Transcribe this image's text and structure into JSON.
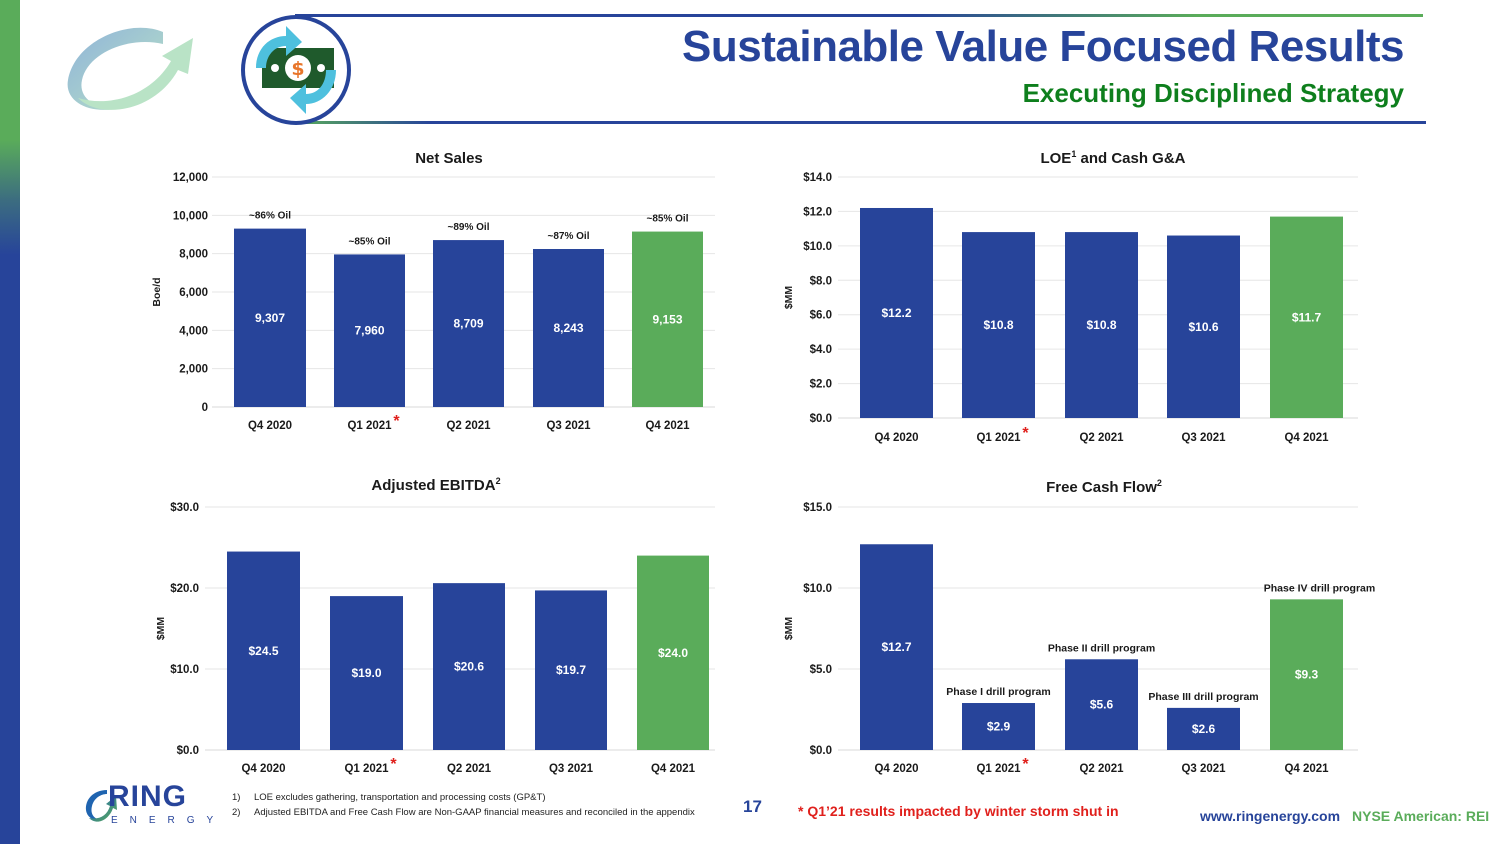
{
  "header": {
    "title": "Sustainable Value Focused Results",
    "subtitle": "Executing Disciplined Strategy",
    "icons": [
      "ring-swoosh-logo-icon",
      "money-cycle-icon"
    ]
  },
  "colors": {
    "primary_blue": "#27449a",
    "accent_green": "#5aac5a",
    "subtitle_green": "#0e7f1d",
    "asterisk_red": "#e0201c",
    "grid": "#e6e6e6"
  },
  "chart_data": [
    {
      "id": "net_sales",
      "type": "bar",
      "title": "Net Sales",
      "title_sup": "",
      "xlabel": "",
      "ylabel": "Boe/d",
      "ylim": [
        0,
        12000
      ],
      "yticks": [
        0,
        2000,
        4000,
        6000,
        8000,
        10000,
        12000
      ],
      "ytick_labels": [
        "0",
        "2,000",
        "4,000",
        "6,000",
        "8,000",
        "10,000",
        "12,000"
      ],
      "grid": true,
      "categories": [
        "Q4 2020",
        "Q1 2021",
        "Q2 2021",
        "Q3 2021",
        "Q4 2021"
      ],
      "values": [
        9307,
        7960,
        8709,
        8243,
        9153
      ],
      "value_labels": [
        "9,307",
        "7,960",
        "8,709",
        "8,243",
        "9,153"
      ],
      "annotations": [
        "~86% Oil",
        "~85% Oil",
        "~89% Oil",
        "~87% Oil",
        "~85% Oil"
      ],
      "highlight_index": 4,
      "asterisk_index": 1
    },
    {
      "id": "loe_cash_ga",
      "type": "bar",
      "title": "LOE",
      "title_sup": "1",
      "title_rest": " and Cash G&A",
      "xlabel": "",
      "ylabel": "$MM",
      "ylim": [
        0,
        14
      ],
      "yticks": [
        0,
        2,
        4,
        6,
        8,
        10,
        12,
        14
      ],
      "ytick_labels": [
        "$0.0",
        "$2.0",
        "$4.0",
        "$6.0",
        "$8.0",
        "$10.0",
        "$12.0",
        "$14.0"
      ],
      "grid": true,
      "categories": [
        "Q4 2020",
        "Q1 2021",
        "Q2 2021",
        "Q3 2021",
        "Q4 2021"
      ],
      "values": [
        12.2,
        10.8,
        10.8,
        10.6,
        11.7
      ],
      "value_labels": [
        "$12.2",
        "$10.8",
        "$10.8",
        "$10.6",
        "$11.7"
      ],
      "annotations": [
        "",
        "",
        "",
        "",
        ""
      ],
      "highlight_index": 4,
      "asterisk_index": 1
    },
    {
      "id": "adjusted_ebitda",
      "type": "bar",
      "title": "Adjusted EBITDA",
      "title_sup": "2",
      "title_rest": "",
      "xlabel": "",
      "ylabel": "$MM",
      "ylim": [
        0,
        30
      ],
      "yticks": [
        0,
        10,
        20,
        30
      ],
      "ytick_labels": [
        "$0.0",
        "$10.0",
        "$20.0",
        "$30.0"
      ],
      "grid": true,
      "categories": [
        "Q4 2020",
        "Q1 2021",
        "Q2 2021",
        "Q3 2021",
        "Q4 2021"
      ],
      "values": [
        24.5,
        19.0,
        20.6,
        19.7,
        24.0
      ],
      "value_labels": [
        "$24.5",
        "$19.0",
        "$20.6",
        "$19.7",
        "$24.0"
      ],
      "annotations": [
        "",
        "",
        "",
        "",
        ""
      ],
      "highlight_index": 4,
      "asterisk_index": 1
    },
    {
      "id": "free_cash_flow",
      "type": "bar",
      "title": "Free Cash Flow",
      "title_sup": "2",
      "title_rest": "",
      "xlabel": "",
      "ylabel": "$MM",
      "ylim": [
        0,
        15
      ],
      "yticks": [
        0,
        5,
        10,
        15
      ],
      "ytick_labels": [
        "$0.0",
        "$5.0",
        "$10.0",
        "$15.0"
      ],
      "grid": true,
      "categories": [
        "Q4 2020",
        "Q1 2021",
        "Q2 2021",
        "Q3 2021",
        "Q4 2021"
      ],
      "values": [
        12.7,
        2.9,
        5.6,
        2.6,
        9.3
      ],
      "value_labels": [
        "$12.7",
        "$2.9",
        "$5.6",
        "$2.6",
        "$9.3"
      ],
      "annotations": [
        "",
        "Phase I drill program",
        "Phase II drill program",
        "Phase III drill program",
        "Phase IV drill program"
      ],
      "highlight_index": 4,
      "asterisk_index": 1
    }
  ],
  "footer": {
    "logo_text": "RING",
    "logo_subtext": "ENERGY",
    "footnotes": [
      {
        "num": "1)",
        "text": "LOE excludes gathering, transportation and processing costs (GP&T)"
      },
      {
        "num": "2)",
        "text": "Adjusted EBITDA and Free Cash Flow are Non-GAAP financial measures and reconciled in the appendix"
      }
    ],
    "page_number": "17",
    "storm_note": "* Q1’21 results impacted by winter storm shut in",
    "website": "www.ringenergy.com",
    "ticker": "NYSE American: REI"
  }
}
